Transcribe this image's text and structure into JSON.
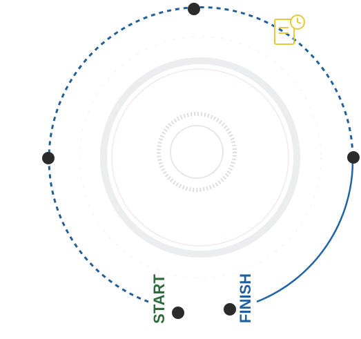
{
  "labels": {
    "start": "START",
    "finish": "FINISH"
  }
}
